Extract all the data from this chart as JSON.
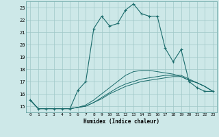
{
  "xlabel": "Humidex (Indice chaleur)",
  "background_color": "#cde8e8",
  "grid_color": "#a0c8c8",
  "line_color": "#1a6b6b",
  "xlim": [
    -0.5,
    23.5
  ],
  "ylim": [
    14.5,
    23.5
  ],
  "yticks": [
    15,
    16,
    17,
    18,
    19,
    20,
    21,
    22,
    23
  ],
  "xticks": [
    0,
    1,
    2,
    3,
    4,
    5,
    6,
    7,
    8,
    9,
    10,
    11,
    12,
    13,
    14,
    15,
    16,
    17,
    18,
    19,
    20,
    21,
    22,
    23
  ],
  "line1_x": [
    0,
    1,
    2,
    3,
    4,
    5,
    6,
    7,
    8,
    9,
    10,
    11,
    12,
    13,
    14,
    15,
    16,
    17,
    18,
    19,
    20,
    21,
    22,
    23
  ],
  "line1_y": [
    15.5,
    14.8,
    14.8,
    14.8,
    14.8,
    14.8,
    16.3,
    17.0,
    21.3,
    22.3,
    21.5,
    21.7,
    22.8,
    23.3,
    22.5,
    22.3,
    22.3,
    19.7,
    18.6,
    19.6,
    17.0,
    16.5,
    16.2,
    16.2
  ],
  "line2_x": [
    0,
    1,
    2,
    3,
    4,
    5,
    6,
    7,
    8,
    9,
    10,
    11,
    12,
    13,
    14,
    15,
    16,
    17,
    18,
    19,
    20,
    21,
    22,
    23
  ],
  "line2_y": [
    15.5,
    14.8,
    14.8,
    14.8,
    14.8,
    14.8,
    14.9,
    15.0,
    15.3,
    15.6,
    16.0,
    16.3,
    16.6,
    16.8,
    17.0,
    17.1,
    17.2,
    17.3,
    17.4,
    17.4,
    17.1,
    16.9,
    16.6,
    16.2
  ],
  "line3_x": [
    0,
    1,
    2,
    3,
    4,
    5,
    6,
    7,
    8,
    9,
    10,
    11,
    12,
    13,
    14,
    15,
    16,
    17,
    18,
    19,
    20,
    21,
    22,
    23
  ],
  "line3_y": [
    15.5,
    14.8,
    14.8,
    14.8,
    14.8,
    14.8,
    14.9,
    15.0,
    15.3,
    15.7,
    16.1,
    16.5,
    16.8,
    17.0,
    17.2,
    17.3,
    17.4,
    17.5,
    17.5,
    17.5,
    17.2,
    16.9,
    16.6,
    16.2
  ],
  "line4_x": [
    0,
    1,
    2,
    3,
    4,
    5,
    6,
    7,
    8,
    9,
    10,
    11,
    12,
    13,
    14,
    15,
    16,
    17,
    18,
    19,
    20,
    21,
    22,
    23
  ],
  "line4_y": [
    15.5,
    14.8,
    14.8,
    14.8,
    14.8,
    14.8,
    14.9,
    15.1,
    15.5,
    16.0,
    16.5,
    17.0,
    17.5,
    17.8,
    17.9,
    17.9,
    17.8,
    17.7,
    17.6,
    17.4,
    17.1,
    16.9,
    16.6,
    16.2
  ]
}
